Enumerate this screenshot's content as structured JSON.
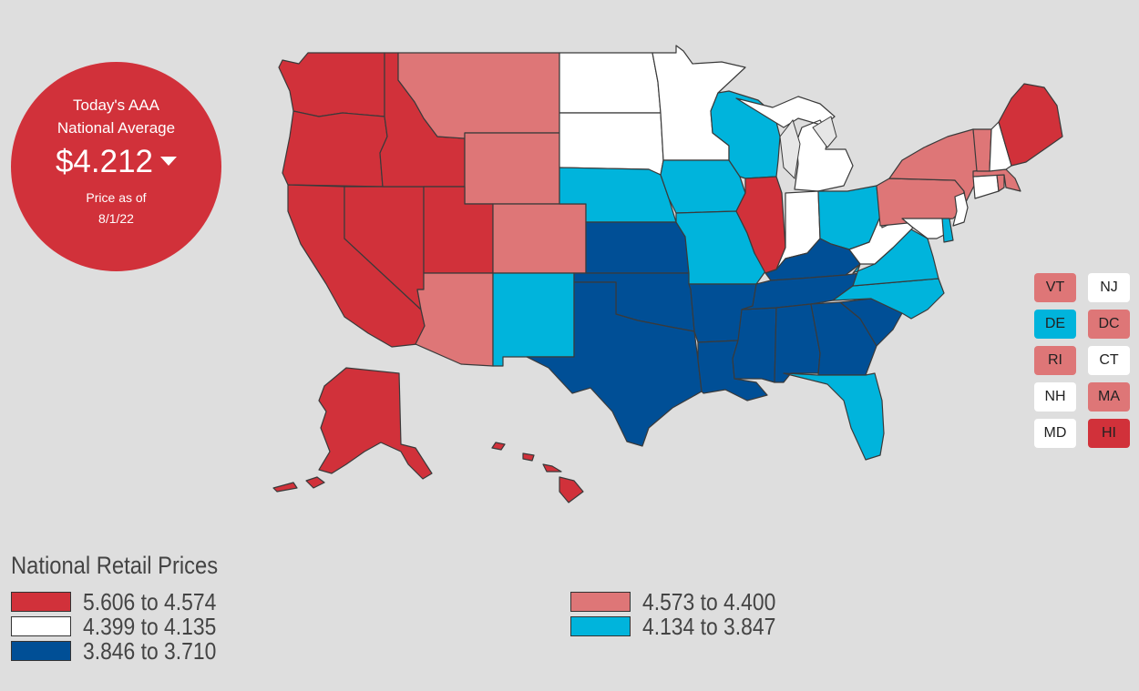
{
  "badge": {
    "line1": "Today's AAA",
    "line2": "National Average",
    "price": "$4.212",
    "trend_icon": "caret-down-icon",
    "asof_line1": "Price as of",
    "asof_line2": "8/1/22"
  },
  "colors": {
    "highest": "#d1313a",
    "high": "#de7677",
    "mid": "#ffffff",
    "low": "#00b4dc",
    "lowest": "#004f96",
    "lakes": "#e6e6e6"
  },
  "legend": {
    "title": "National Retail Prices",
    "ranges": [
      {
        "label": "5.606 to 4.574",
        "color": "#d1313a"
      },
      {
        "label": "4.399 to 4.135",
        "color": "#ffffff"
      },
      {
        "label": "3.846 to 3.710",
        "color": "#004f96"
      },
      {
        "label": "4.573 to 4.400",
        "color": "#de7677"
      },
      {
        "label": "4.134 to 3.847",
        "color": "#00b4dc"
      }
    ]
  },
  "small_states": [
    {
      "abbr": "VT",
      "tier": "high"
    },
    {
      "abbr": "NJ",
      "tier": "mid"
    },
    {
      "abbr": "DE",
      "tier": "low"
    },
    {
      "abbr": "DC",
      "tier": "high"
    },
    {
      "abbr": "RI",
      "tier": "high"
    },
    {
      "abbr": "CT",
      "tier": "mid"
    },
    {
      "abbr": "NH",
      "tier": "mid"
    },
    {
      "abbr": "MA",
      "tier": "high"
    },
    {
      "abbr": "MD",
      "tier": "mid"
    },
    {
      "abbr": "HI",
      "tier": "highest"
    }
  ],
  "state_tiers": {
    "WA": "highest",
    "OR": "highest",
    "CA": "highest",
    "NV": "highest",
    "ID": "highest",
    "UT": "highest",
    "AK": "highest",
    "HI": "highest",
    "IL": "highest",
    "ME": "highest",
    "MT": "high",
    "WY": "high",
    "CO": "high",
    "AZ": "high",
    "NY": "high",
    "PA": "high",
    "VT": "high",
    "MA": "high",
    "RI": "high",
    "DC": "high",
    "ND": "mid",
    "SD": "mid",
    "MN": "mid",
    "MI": "mid",
    "IN": "mid",
    "WV": "mid",
    "NH": "mid",
    "NJ": "mid",
    "CT": "mid",
    "MD": "mid",
    "NE": "low",
    "IA": "low",
    "WI": "low",
    "MO": "low",
    "NM": "low",
    "OH": "low",
    "VA": "low",
    "NC": "low",
    "FL": "low",
    "DE": "low",
    "KS": "lowest",
    "OK": "lowest",
    "TX": "lowest",
    "AR": "lowest",
    "LA": "lowest",
    "MS": "lowest",
    "AL": "lowest",
    "GA": "lowest",
    "SC": "lowest",
    "TN": "lowest",
    "KY": "lowest"
  }
}
